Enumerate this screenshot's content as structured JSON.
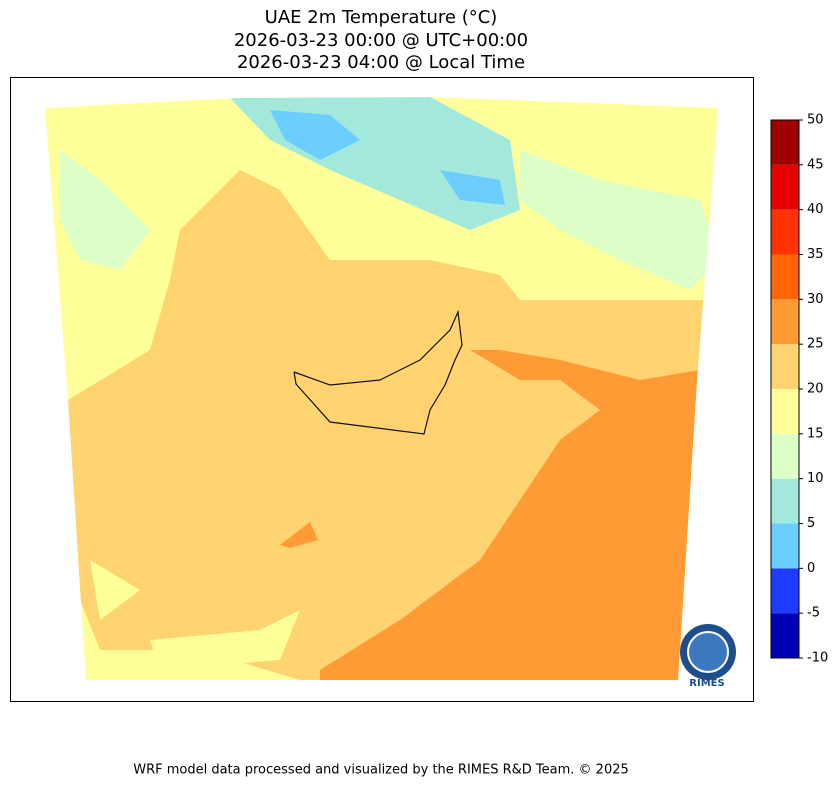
{
  "title": [
    "UAE 2m Temperature (°C)",
    "2026-03-23 00:00 @ UTC+00:00",
    "2026-03-23 04:00 @ Local Time"
  ],
  "colorbar": {
    "ticks": [
      -10,
      -5,
      0,
      5,
      10,
      15,
      20,
      25,
      30,
      35,
      40,
      45,
      50
    ],
    "colors": [
      "#0000b4",
      "#1e3cff",
      "#6ccdff",
      "#a2e9dc",
      "#dcffc8",
      "#ffff99",
      "#ffd370",
      "#ff9a35",
      "#ff6600",
      "#ff3300",
      "#e60000",
      "#a00000"
    ]
  },
  "logo": "RIMES",
  "footer": "WRF model data processed and visualized by the RIMES R&D Team. © 2025"
}
